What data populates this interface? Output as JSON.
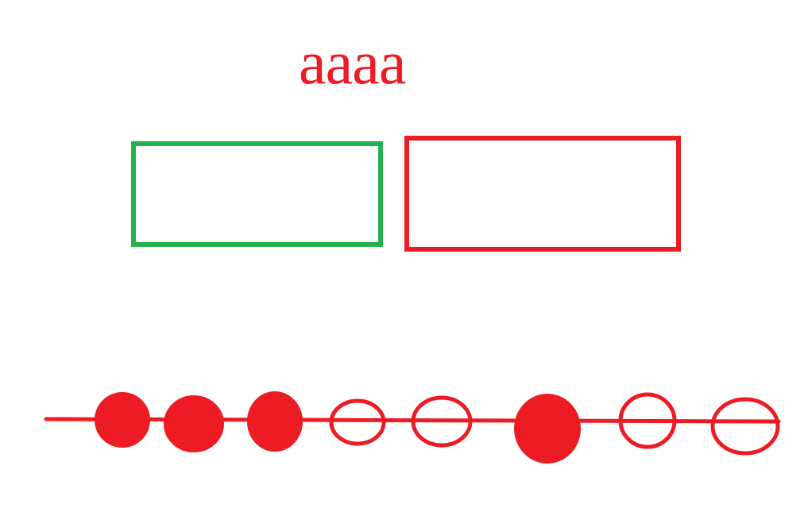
{
  "heading": {
    "text": "aaaa"
  },
  "colors": {
    "background": "#ffffff",
    "red": "#ed1c24",
    "green": "#22b14c"
  },
  "boxes": [
    {
      "name": "green-outline-box",
      "color": "green",
      "filled": false
    },
    {
      "name": "red-outline-box",
      "color": "red",
      "filled": false
    }
  ],
  "timeline": {
    "color": "red",
    "markers": [
      {
        "style": "filled"
      },
      {
        "style": "filled"
      },
      {
        "style": "filled"
      },
      {
        "style": "hollow"
      },
      {
        "style": "hollow"
      },
      {
        "style": "filled"
      },
      {
        "style": "hollow"
      },
      {
        "style": "hollow"
      }
    ]
  }
}
